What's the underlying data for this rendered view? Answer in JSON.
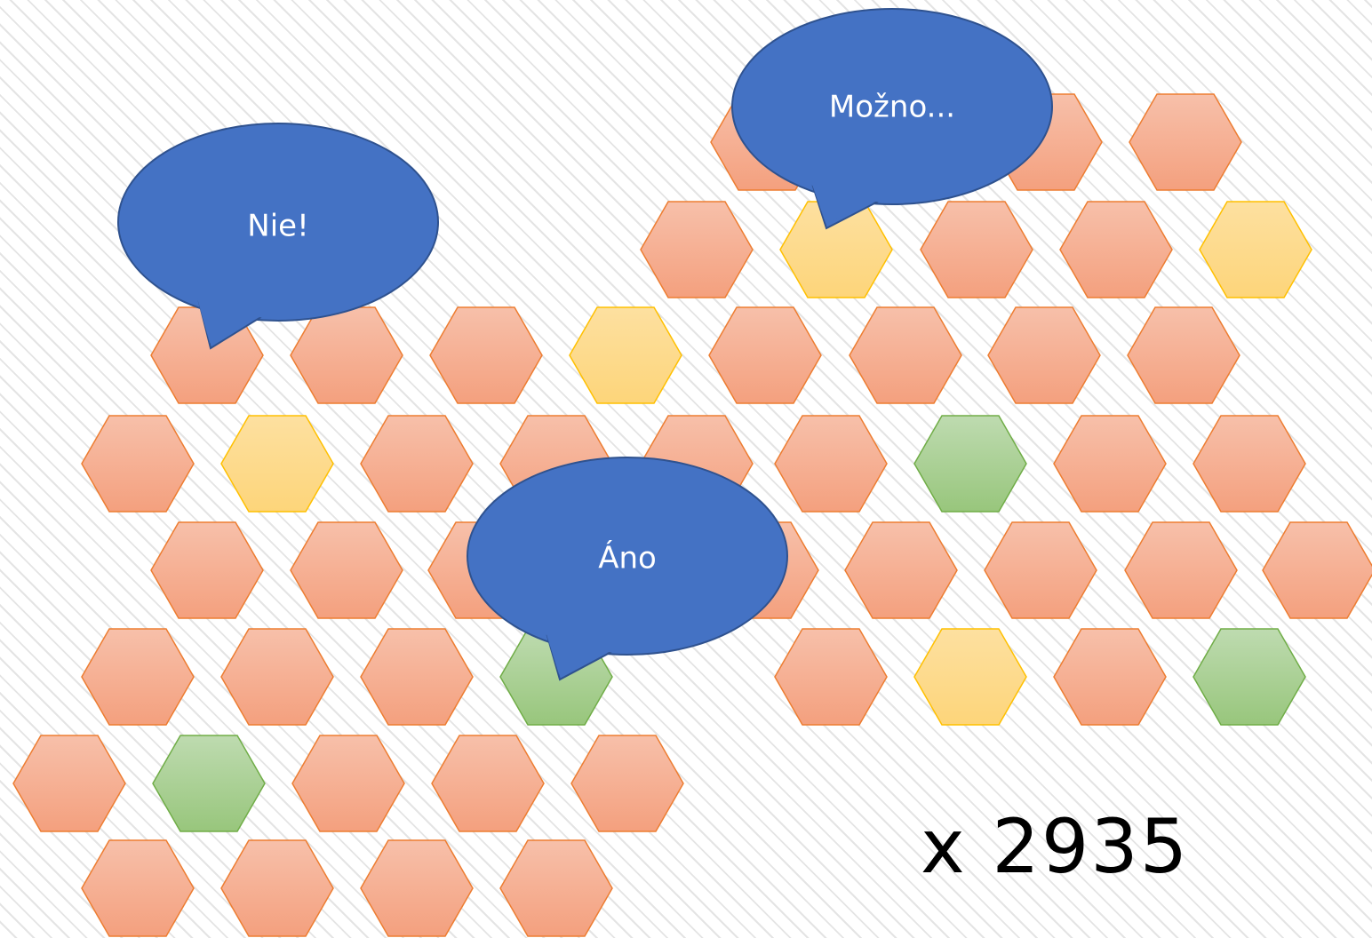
{
  "bubbles": [
    "Nie!",
    "Možno...",
    "Áno"
  ],
  "counter": "x 2935"
}
